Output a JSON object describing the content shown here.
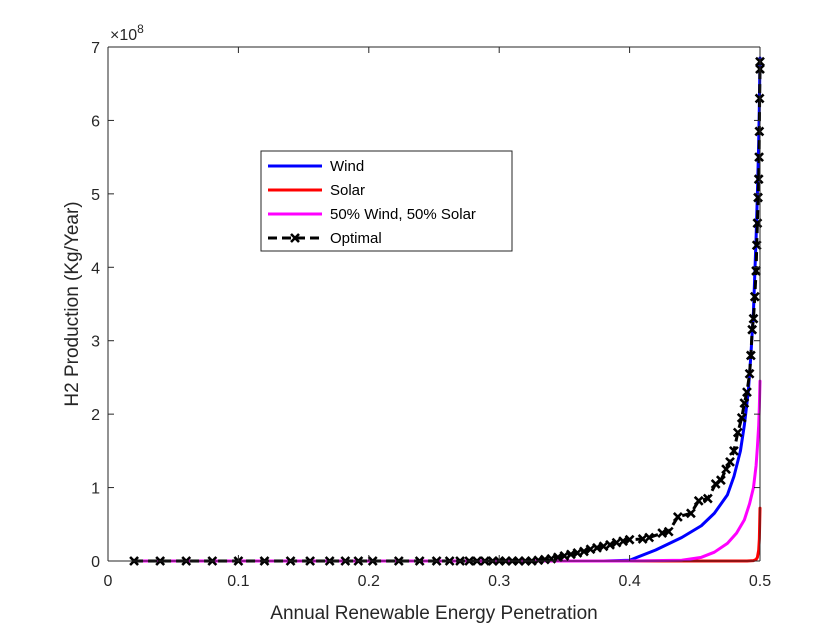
{
  "chart_data": {
    "type": "line",
    "title": "",
    "xlabel": "Annual Renewable Energy Penetration",
    "ylabel": "H2 Production (Kg/Year)",
    "xlim": [
      0,
      0.5
    ],
    "ylim": [
      0,
      7
    ],
    "y_exponent_label": "×10",
    "y_exponent_power": "8",
    "x_ticks": [
      "0",
      "0.1",
      "0.2",
      "0.3",
      "0.4",
      "0.5"
    ],
    "y_ticks": [
      "0",
      "1",
      "2",
      "3",
      "4",
      "5",
      "6",
      "7"
    ],
    "grid": false,
    "legend_position": "upper-left-center",
    "series": [
      {
        "name": "Wind",
        "color": "#0000ff",
        "style": "solid",
        "x": [
          0.02,
          0.1,
          0.2,
          0.3,
          0.38,
          0.4,
          0.42,
          0.44,
          0.455,
          0.465,
          0.475,
          0.48,
          0.485,
          0.488,
          0.491,
          0.493,
          0.495,
          0.496,
          0.497,
          0.498,
          0.499,
          0.4995,
          0.5
        ],
        "y": [
          0,
          0,
          0,
          0,
          0,
          0.01,
          0.15,
          0.32,
          0.48,
          0.65,
          0.9,
          1.15,
          1.5,
          1.85,
          2.3,
          2.8,
          3.4,
          3.9,
          4.4,
          5.0,
          5.7,
          6.2,
          6.85
        ]
      },
      {
        "name": "Solar",
        "color": "#ff0000",
        "style": "solid",
        "x": [
          0.02,
          0.1,
          0.2,
          0.3,
          0.4,
          0.45,
          0.49,
          0.495,
          0.497,
          0.498,
          0.499,
          0.4995,
          0.5
        ],
        "y": [
          0,
          0,
          0,
          0,
          0,
          0,
          0,
          0.005,
          0.02,
          0.05,
          0.15,
          0.3,
          0.72
        ]
      },
      {
        "name": "50% Wind, 50% Solar",
        "color": "#ff00ff",
        "style": "solid",
        "x": [
          0.02,
          0.1,
          0.2,
          0.3,
          0.4,
          0.44,
          0.455,
          0.465,
          0.475,
          0.482,
          0.488,
          0.492,
          0.495,
          0.497,
          0.498,
          0.499,
          0.4995,
          0.5
        ],
        "y": [
          0,
          0,
          0,
          0,
          0,
          0.01,
          0.05,
          0.12,
          0.24,
          0.38,
          0.56,
          0.78,
          1.0,
          1.3,
          1.55,
          1.85,
          2.1,
          2.45
        ]
      },
      {
        "name": "Optimal",
        "color": "#000000",
        "style": "dashed-x",
        "x": [
          0.02,
          0.04,
          0.06,
          0.08,
          0.1,
          0.12,
          0.14,
          0.155,
          0.17,
          0.182,
          0.192,
          0.203,
          0.223,
          0.239,
          0.252,
          0.262,
          0.27,
          0.277,
          0.283,
          0.289,
          0.295,
          0.3,
          0.305,
          0.31,
          0.315,
          0.32,
          0.325,
          0.33,
          0.335,
          0.34,
          0.345,
          0.35,
          0.355,
          0.36,
          0.365,
          0.37,
          0.375,
          0.38,
          0.385,
          0.39,
          0.395,
          0.4,
          0.41,
          0.415,
          0.425,
          0.43,
          0.437,
          0.447,
          0.453,
          0.46,
          0.466,
          0.47,
          0.474,
          0.477,
          0.48,
          0.483,
          0.486,
          0.488,
          0.49,
          0.492,
          0.493,
          0.494,
          0.495,
          0.496,
          0.497,
          0.4975,
          0.498,
          0.4985,
          0.499,
          0.4993,
          0.4995,
          0.4997,
          0.5,
          0.5
        ],
        "y": [
          0,
          0,
          0,
          0,
          0,
          0,
          0,
          0,
          0,
          0,
          0,
          0,
          0,
          0,
          0,
          0,
          0,
          0,
          0,
          0,
          0,
          0,
          0,
          0,
          0,
          0,
          0,
          0.01,
          0.02,
          0.03,
          0.05,
          0.07,
          0.09,
          0.11,
          0.13,
          0.16,
          0.18,
          0.2,
          0.22,
          0.25,
          0.27,
          0.29,
          0.3,
          0.32,
          0.38,
          0.4,
          0.6,
          0.65,
          0.82,
          0.85,
          1.05,
          1.1,
          1.25,
          1.35,
          1.5,
          1.75,
          1.95,
          2.15,
          2.3,
          2.55,
          2.8,
          3.15,
          3.3,
          3.6,
          3.95,
          4.3,
          4.6,
          4.95,
          5.2,
          5.5,
          5.85,
          6.3,
          6.7,
          6.8
        ]
      }
    ]
  }
}
